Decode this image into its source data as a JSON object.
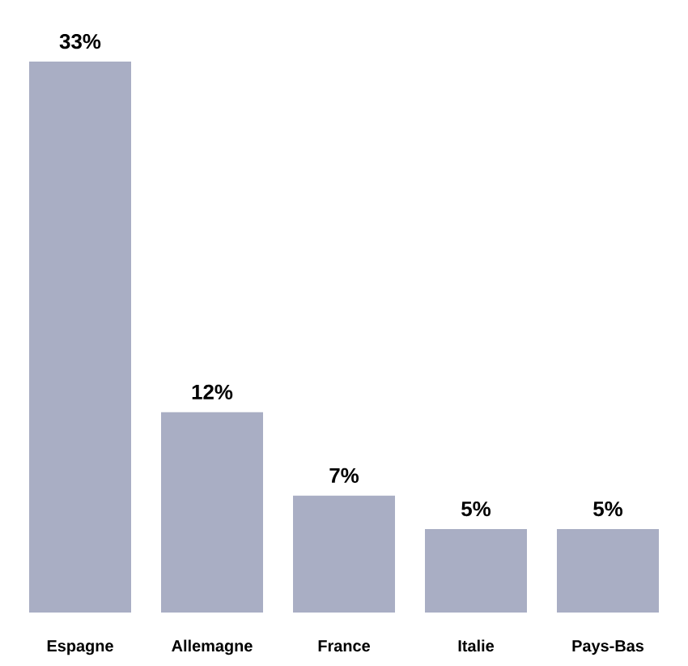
{
  "chart_data": {
    "type": "bar",
    "categories": [
      "Espagne",
      "Allemagne",
      "France",
      "Italie",
      "Pays-Bas"
    ],
    "values": [
      33,
      12,
      7,
      5,
      5
    ],
    "value_labels": [
      "33%",
      "12%",
      "7%",
      "5%",
      "5%"
    ],
    "color": "#a9aec4"
  }
}
